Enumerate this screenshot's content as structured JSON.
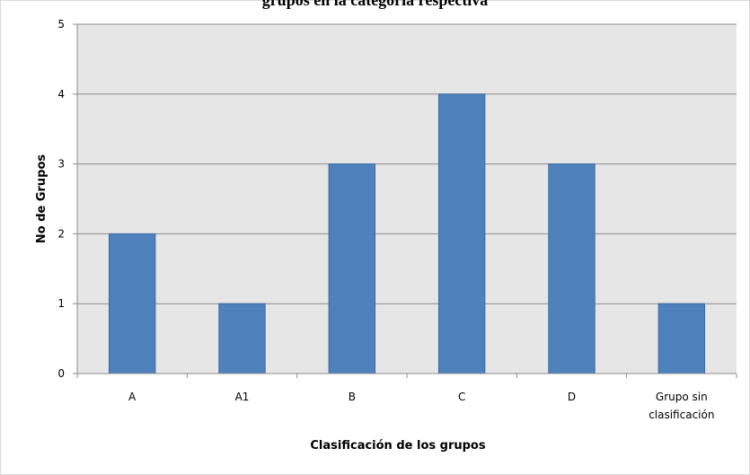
{
  "chart_data": {
    "type": "bar",
    "title": "grupos en la categoría respectiva",
    "xlabel": "Clasificación  de los grupos",
    "ylabel": "No de Grupos",
    "categories": [
      "A",
      "A1",
      "B",
      "C",
      "D",
      "Grupo sin clasificación"
    ],
    "values": [
      2,
      1,
      3,
      4,
      3,
      1
    ],
    "ylim": [
      0,
      5
    ],
    "yticks": [
      0,
      1,
      2,
      3,
      4,
      5
    ],
    "grid": true,
    "legend": "none",
    "colors": {
      "bar": "#4f81bd",
      "bar_border": "#3a6aa3",
      "plot_background": "#e6e6e6",
      "gridline": "#8c8c8c"
    }
  }
}
